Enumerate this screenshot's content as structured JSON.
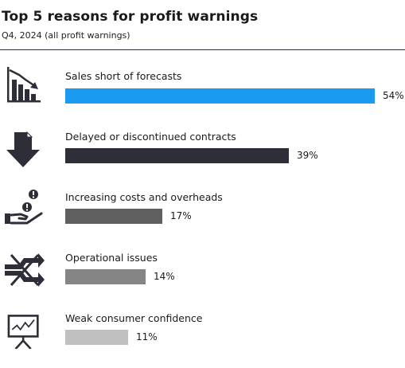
{
  "chart_data": {
    "type": "bar",
    "orientation": "horizontal",
    "title": "Top 5 reasons for profit warnings",
    "subtitle": "Q4, 2024 (all profit warnings)",
    "categories": [
      "Sales short of forecasts",
      "Delayed or discontinued contracts",
      "Increasing costs and overheads",
      "Operational issues",
      "Weak consumer confidence"
    ],
    "values": [
      54,
      39,
      17,
      14,
      11
    ],
    "value_labels": [
      "54%",
      "39%",
      "17%",
      "14%",
      "11%"
    ],
    "unit": "%",
    "colors": [
      "#1a9af0",
      "#2e2e38",
      "#5f5f5f",
      "#858585",
      "#c0c0c0"
    ],
    "icons": [
      "declining-bar-chart-icon",
      "down-arrow-document-icon",
      "hand-with-coins-icon",
      "crossed-arrows-icon",
      "presentation-board-icon"
    ],
    "xlim": [
      0,
      54
    ],
    "grid": false,
    "legend": "none"
  }
}
